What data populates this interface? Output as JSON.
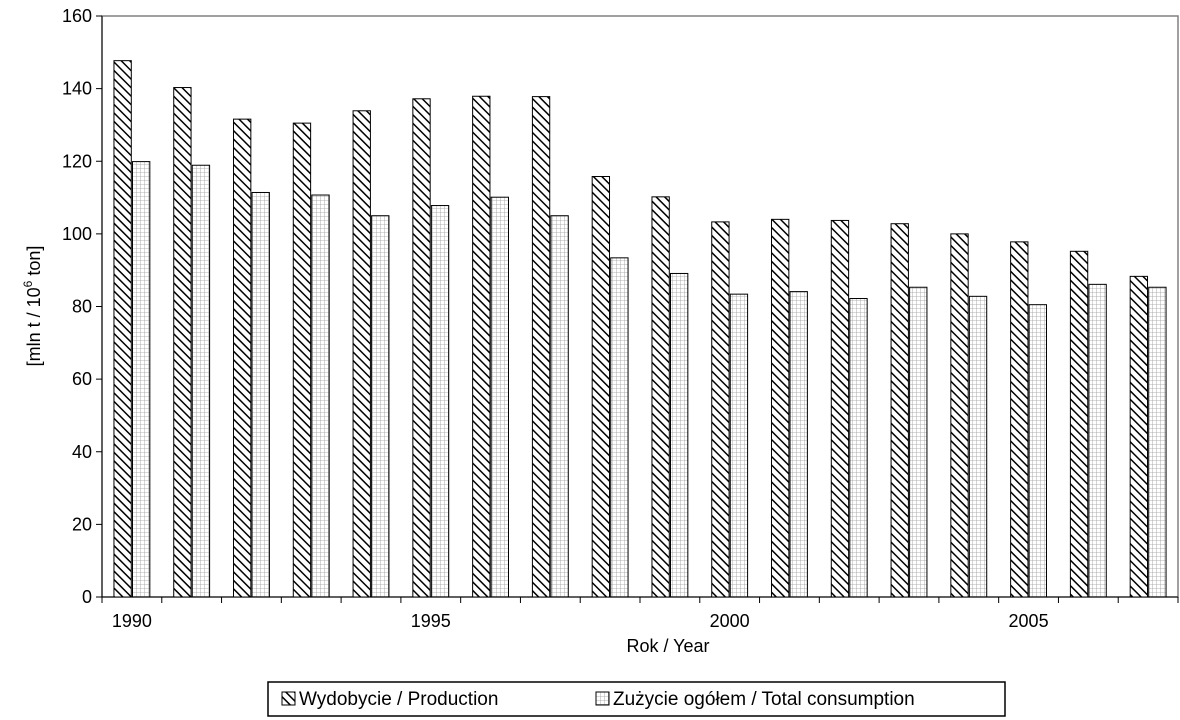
{
  "chart_data": {
    "type": "bar",
    "categories": [
      "1990",
      "1991",
      "1992",
      "1993",
      "1994",
      "1995",
      "1996",
      "1997",
      "1998",
      "1999",
      "2000",
      "2001",
      "2002",
      "2003",
      "2004",
      "2005",
      "2006",
      "2007"
    ],
    "x_tick_labels": [
      "1990",
      "1995",
      "2000",
      "2005"
    ],
    "series": [
      {
        "name": "Wydobycie / Production",
        "pattern": "diagonal-hatch",
        "values": [
          147.7,
          140.3,
          131.6,
          130.5,
          133.9,
          137.2,
          137.9,
          137.8,
          115.8,
          110.2,
          103.3,
          104.0,
          103.7,
          102.8,
          100.0,
          97.8,
          95.2,
          88.3
        ]
      },
      {
        "name": "Zużycie ogółem / Total consumption",
        "pattern": "grid-hatch",
        "values": [
          119.9,
          118.9,
          111.4,
          110.7,
          105.0,
          107.8,
          110.1,
          105.0,
          93.4,
          89.1,
          83.4,
          84.1,
          82.2,
          85.3,
          82.8,
          80.5,
          86.1,
          85.3
        ]
      }
    ],
    "xlabel": "Rok / Year",
    "ylabel": "[mln t / 10",
    "ylabel_sup": "6",
    "ylabel_tail": " ton]",
    "ylim": [
      0,
      160
    ],
    "yticks": [
      0,
      20,
      40,
      60,
      80,
      100,
      120,
      140,
      160
    ],
    "grid": false,
    "legend_position": "bottom",
    "colors": {
      "bar_stroke": "#000000",
      "hatch": "#000000",
      "axis": "#808080",
      "background": "#ffffff"
    }
  }
}
